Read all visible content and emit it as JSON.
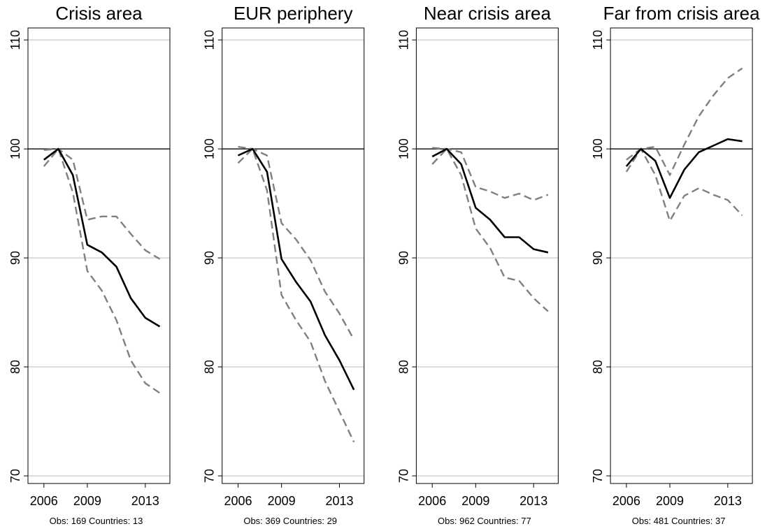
{
  "chart_data": [
    {
      "type": "line",
      "title": "Crisis area",
      "note": "Obs: 169  Countries: 13",
      "x": [
        2006,
        2007,
        2008,
        2009,
        2010,
        2011,
        2012,
        2013,
        2014
      ],
      "series": [
        {
          "color": "#808080",
          "dashed": true,
          "values": [
            99.9,
            100,
            99.0,
            93.5,
            93.8,
            93.8,
            92.2,
            90.7,
            89.9
          ]
        },
        {
          "color": "#808080",
          "dashed": true,
          "values": [
            98.4,
            100,
            96.0,
            88.8,
            87.0,
            84.3,
            80.6,
            78.5,
            77.6
          ]
        },
        {
          "color": "#000000",
          "dashed": false,
          "values": [
            99.0,
            100,
            97.6,
            91.2,
            90.5,
            89.2,
            86.3,
            84.5,
            83.7
          ]
        }
      ],
      "xlim": [
        2004.9,
        2014.7
      ],
      "xticks": [
        2006,
        2009,
        2013
      ],
      "ylim": [
        69.3,
        111.1
      ],
      "yticks": [
        70,
        80,
        90,
        100,
        110
      ],
      "grid": true,
      "reference_line": 100
    },
    {
      "type": "line",
      "title": "EUR periphery",
      "note": "Obs: 369  Countries: 29",
      "x": [
        2006,
        2007,
        2008,
        2009,
        2010,
        2011,
        2012,
        2013,
        2014
      ],
      "series": [
        {
          "color": "#808080",
          "dashed": true,
          "values": [
            100.2,
            100,
            99.4,
            93.2,
            91.7,
            89.8,
            86.9,
            84.9,
            82.5
          ]
        },
        {
          "color": "#808080",
          "dashed": true,
          "values": [
            98.7,
            100,
            96.2,
            86.6,
            84.3,
            82.3,
            78.7,
            75.9,
            73.1
          ]
        },
        {
          "color": "#000000",
          "dashed": false,
          "values": [
            99.4,
            100,
            97.9,
            89.9,
            87.8,
            86.0,
            82.9,
            80.6,
            77.9
          ]
        }
      ],
      "xlim": [
        2004.9,
        2014.7
      ],
      "xticks": [
        2006,
        2009,
        2013
      ],
      "ylim": [
        69.3,
        111.1
      ],
      "yticks": [
        70,
        80,
        90,
        100,
        110
      ],
      "grid": true,
      "reference_line": 100
    },
    {
      "type": "line",
      "title": "Near crisis area",
      "note": "Obs: 962  Countries: 77",
      "x": [
        2006,
        2007,
        2008,
        2009,
        2010,
        2011,
        2012,
        2013,
        2014
      ],
      "series": [
        {
          "color": "#808080",
          "dashed": true,
          "values": [
            100.1,
            100,
            99.7,
            96.5,
            96.1,
            95.5,
            95.9,
            95.3,
            95.8
          ]
        },
        {
          "color": "#808080",
          "dashed": true,
          "values": [
            98.6,
            100,
            97.6,
            92.7,
            90.9,
            88.2,
            87.9,
            86.3,
            85.1
          ]
        },
        {
          "color": "#000000",
          "dashed": false,
          "values": [
            99.3,
            100,
            98.6,
            94.6,
            93.5,
            91.9,
            91.9,
            90.8,
            90.5
          ]
        }
      ],
      "xlim": [
        2004.9,
        2014.7
      ],
      "xticks": [
        2006,
        2009,
        2013
      ],
      "ylim": [
        69.3,
        111.1
      ],
      "yticks": [
        70,
        80,
        90,
        100,
        110
      ],
      "grid": true,
      "reference_line": 100
    },
    {
      "type": "line",
      "title": "Far from crisis area",
      "note": "Obs: 481  Countries: 37",
      "x": [
        2006,
        2007,
        2008,
        2009,
        2010,
        2011,
        2012,
        2013,
        2014
      ],
      "series": [
        {
          "color": "#808080",
          "dashed": true,
          "values": [
            99.0,
            100,
            100.2,
            97.6,
            100.4,
            103.0,
            104.9,
            106.5,
            107.4
          ]
        },
        {
          "color": "#808080",
          "dashed": true,
          "values": [
            97.9,
            100,
            97.6,
            93.4,
            95.7,
            96.4,
            95.8,
            95.3,
            93.9
          ]
        },
        {
          "color": "#000000",
          "dashed": false,
          "values": [
            98.4,
            100,
            98.9,
            95.5,
            98.1,
            99.7,
            100.3,
            100.9,
            100.7
          ]
        }
      ],
      "xlim": [
        2004.9,
        2014.7
      ],
      "xticks": [
        2006,
        2009,
        2013
      ],
      "ylim": [
        69.3,
        111.1
      ],
      "yticks": [
        70,
        80,
        90,
        100,
        110
      ],
      "grid": true,
      "reference_line": 100
    }
  ]
}
